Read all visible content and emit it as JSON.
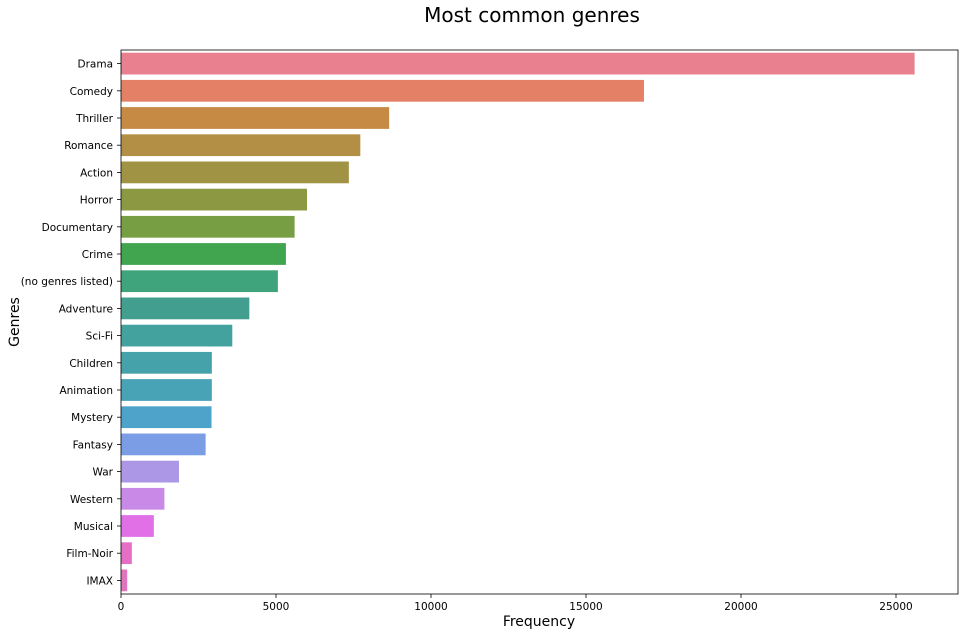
{
  "chart_data": {
    "type": "bar",
    "orientation": "horizontal",
    "title": "Most common genres",
    "xlabel": "Frequency",
    "ylabel": "Genres",
    "xlim": [
      0,
      27000
    ],
    "xticks": [
      0,
      5000,
      10000,
      15000,
      20000,
      25000
    ],
    "grid": false,
    "categories": [
      "Drama",
      "Comedy",
      "Thriller",
      "Romance",
      "Action",
      "Horror",
      "Documentary",
      "Crime",
      "(no genres listed)",
      "Adventure",
      "Sci-Fi",
      "Children",
      "Animation",
      "Mystery",
      "Fantasy",
      "War",
      "Western",
      "Musical",
      "Film-Noir",
      "IMAX"
    ],
    "values": [
      25600,
      16870,
      8650,
      7720,
      7350,
      6000,
      5600,
      5320,
      5060,
      4140,
      3590,
      2930,
      2930,
      2920,
      2730,
      1870,
      1400,
      1060,
      350,
      200
    ],
    "colors": [
      "#e8808f",
      "#e48066",
      "#c68a45",
      "#b38f45",
      "#a09444",
      "#8c9842",
      "#779e42",
      "#41a44e",
      "#3fa47c",
      "#429e8e",
      "#43a19e",
      "#45a2aa",
      "#47a3b5",
      "#4da3c9",
      "#7b9de6",
      "#ac97e6",
      "#c88ae6",
      "#e170e6",
      "#e56ec6",
      "#e074bd"
    ]
  }
}
